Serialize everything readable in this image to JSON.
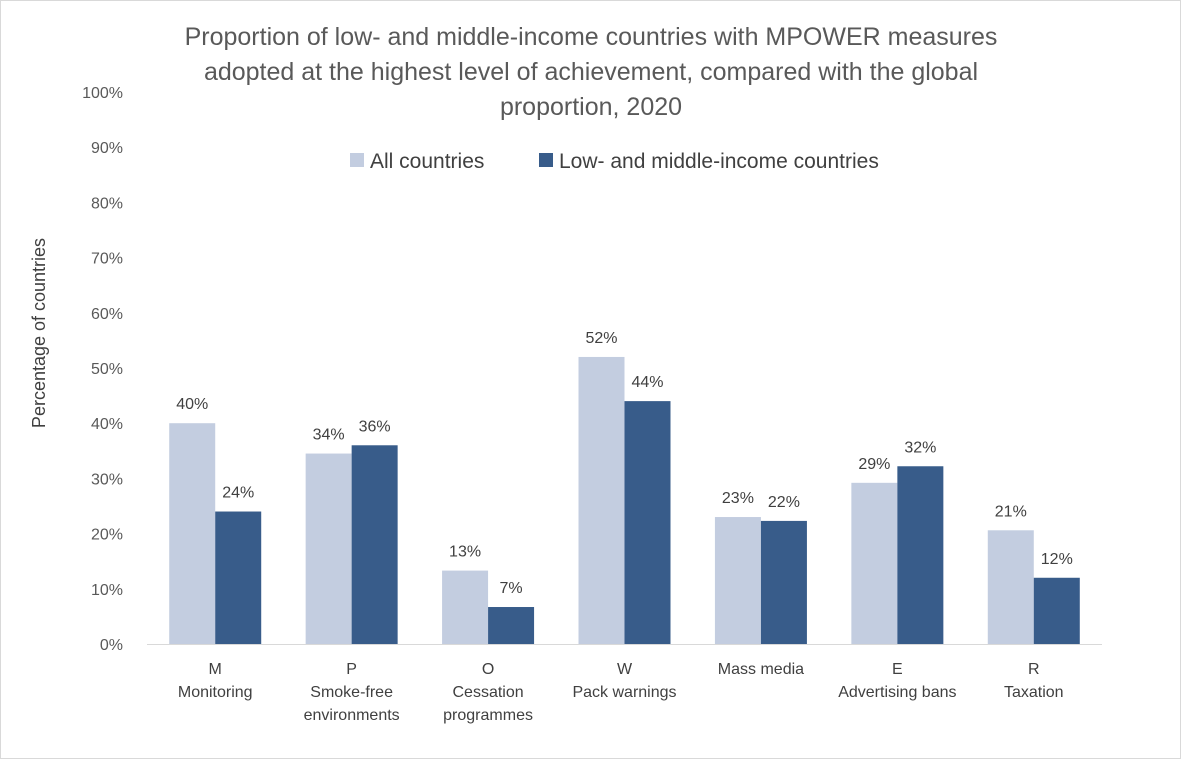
{
  "chart_data": {
    "type": "bar",
    "title_lines": [
      "Proportion of low- and middle-income countries with MPOWER measures",
      "adopted at the highest level of achievement, compared with the global",
      "proportion, 2020"
    ],
    "ylabel": "Percentage of countries",
    "xlabel": "",
    "ylim": [
      0,
      100
    ],
    "y_ticks": [
      "0%",
      "10%",
      "20%",
      "30%",
      "40%",
      "50%",
      "60%",
      "70%",
      "80%",
      "90%",
      "100%"
    ],
    "categories": [
      [
        "M",
        "Monitoring"
      ],
      [
        "P",
        "Smoke-free",
        "environments"
      ],
      [
        "O",
        "Cessation",
        "programmes"
      ],
      [
        "W",
        "Pack warnings"
      ],
      [
        "Mass media"
      ],
      [
        "E",
        "Advertising bans"
      ],
      [
        "R",
        "Taxation"
      ]
    ],
    "series": [
      {
        "name": "All countries",
        "color": "#c3cde0",
        "values": [
          40,
          34.5,
          13.3,
          52,
          23,
          29.2,
          20.6
        ],
        "labels": [
          "40%",
          "34%",
          "13%",
          "52%",
          "23%",
          "29%",
          "21%"
        ]
      },
      {
        "name": "Low- and middle-income countries",
        "color": "#385c8a",
        "values": [
          24,
          36,
          6.7,
          44,
          22.3,
          32.2,
          12
        ],
        "labels": [
          "24%",
          "36%",
          "7%",
          "44%",
          "22%",
          "32%",
          "12%"
        ]
      }
    ],
    "legend_position": "top",
    "grid": false
  }
}
